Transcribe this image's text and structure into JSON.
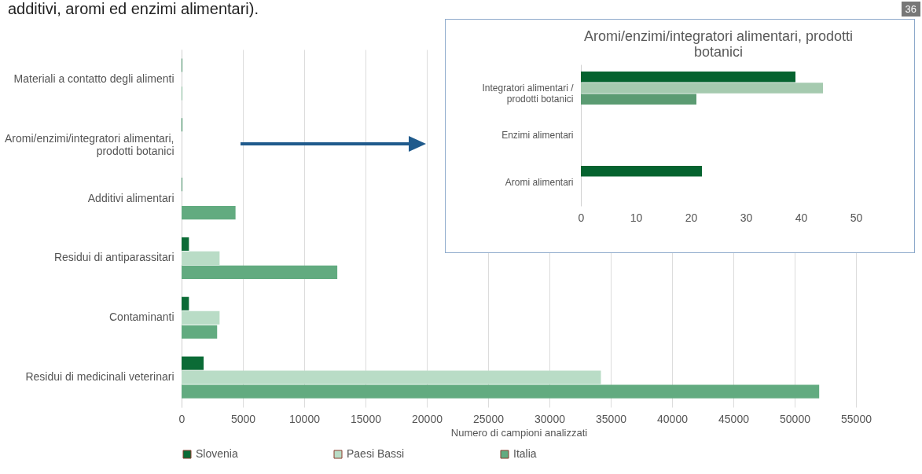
{
  "chart_data": [
    {
      "type": "bar",
      "orientation": "horizontal",
      "xlabel": "Numero di campioni analizzati",
      "categories": [
        "Materiali a contatto degli alimenti",
        "Aromi/enzimi/integratori alimentari, prodotti botanici",
        "Additivi alimentari",
        "Residui di antiparassitari",
        "Contaminanti",
        "Residui di medicinali veterinari"
      ],
      "series": [
        {
          "name": "Slovenia",
          "color": "#0b6b36",
          "values": [
            50,
            60,
            50,
            600,
            600,
            1800
          ]
        },
        {
          "name": "Paesi Bassi",
          "color": "#b9dcc6",
          "values": [
            null,
            null,
            null,
            3100,
            3100,
            34200
          ]
        },
        {
          "name": "Italia",
          "color": "#62ab80",
          "values": [
            50,
            null,
            4400,
            12700,
            2900,
            52000
          ]
        }
      ],
      "xlim": [
        0,
        55000
      ],
      "xticks": [
        0,
        5000,
        10000,
        15000,
        20000,
        25000,
        30000,
        35000,
        40000,
        45000,
        50000,
        55000
      ],
      "grid": "x",
      "legend": "bottom",
      "annotations": [
        "additivi, aromi ed enzimi alimentari).",
        "36"
      ]
    },
    {
      "type": "bar",
      "orientation": "horizontal",
      "title": "Aromi/enzimi/integratori alimentari, prodotti botanici",
      "categories": [
        "Integratori alimentari / prodotti botanici",
        "Enzimi alimentari",
        "Aromi alimentari"
      ],
      "series": [
        {
          "color": "#05632f",
          "values": [
            39,
            null,
            22
          ]
        },
        {
          "color": "#a5caaf",
          "values": [
            44,
            null,
            null
          ]
        },
        {
          "color": "#5b9b72",
          "values": [
            21,
            null,
            null
          ]
        }
      ],
      "xlim": [
        0,
        50
      ],
      "xticks": [
        0,
        10,
        20,
        30,
        40,
        50
      ]
    }
  ]
}
